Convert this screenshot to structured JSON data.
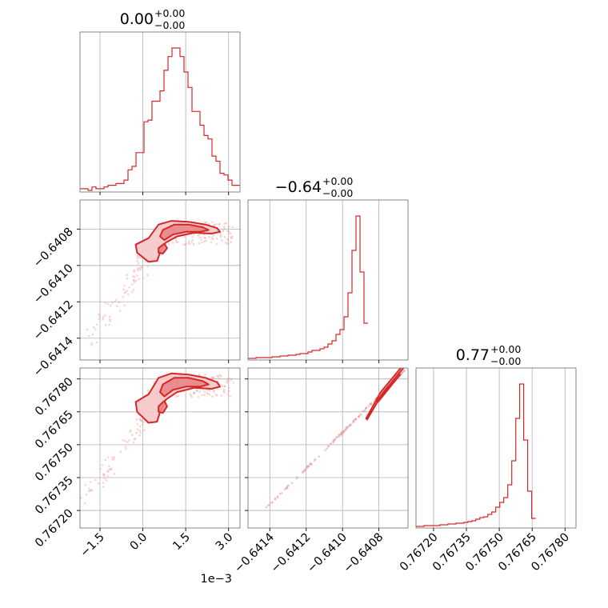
{
  "colors": {
    "series": "#d62728",
    "fill_inner": "#e8878a",
    "fill_outer": "#f5c7c8",
    "scatter": "#eaa0a2",
    "grid": "#b0b0b0",
    "frame": "#000000"
  },
  "chart_data": {
    "type": "corner",
    "grid": true,
    "parameters": [
      {
        "id": "p0",
        "title": "0.00",
        "title_sup": "+0.00",
        "title_sub": "−0.00",
        "range": [
          -2.2,
          3.4
        ],
        "ticks": [
          {
            "value": -1.5,
            "label": "−1.5"
          },
          {
            "value": 0.0,
            "label": "0.0"
          },
          {
            "value": 1.5,
            "label": "1.5"
          },
          {
            "value": 3.0,
            "label": "3.0"
          }
        ],
        "offset": "1e−3",
        "hist": {
          "start": -2.2,
          "bin_width": 0.14,
          "counts": [
            1,
            1,
            0,
            2,
            1,
            1,
            2,
            3,
            3,
            4,
            4,
            6,
            12,
            14,
            22,
            22,
            40,
            41,
            52,
            52,
            58,
            70,
            78,
            83,
            83,
            78,
            69,
            60,
            46,
            46,
            38,
            32,
            30,
            20,
            17,
            10,
            9,
            6,
            3,
            3
          ]
        }
      },
      {
        "id": "p1",
        "title": "−0.64",
        "title_sup": "+0.00",
        "title_sub": "−0.00",
        "range": [
          -0.64152,
          -0.64064
        ],
        "ticks": [
          {
            "value": -0.6414,
            "label": "−0.6414"
          },
          {
            "value": -0.6412,
            "label": "−0.6412"
          },
          {
            "value": -0.641,
            "label": "−0.6410"
          },
          {
            "value": -0.6408,
            "label": "−0.6408"
          }
        ],
        "hist": {
          "start": -0.64152,
          "bin_width": 2.2e-05,
          "counts": [
            0,
            0,
            1,
            1,
            1,
            1,
            2,
            2,
            3,
            3,
            4,
            4,
            5,
            6,
            6,
            8,
            10,
            10,
            12,
            14,
            18,
            22,
            30,
            36,
            52,
            82,
            135,
            178,
            108,
            44
          ]
        }
      },
      {
        "id": "p2",
        "title": "0.77",
        "title_sup": "+0.00",
        "title_sub": "−0.00",
        "range": [
          0.76712,
          0.76785
        ],
        "ticks": [
          {
            "value": 0.7672,
            "label": "0.76720"
          },
          {
            "value": 0.76735,
            "label": "0.76735"
          },
          {
            "value": 0.7675,
            "label": "0.76750"
          },
          {
            "value": 0.76765,
            "label": "0.76765"
          },
          {
            "value": 0.7678,
            "label": "0.76780"
          }
        ],
        "hist": {
          "start": 0.76712,
          "bin_width": 1.82e-05,
          "counts": [
            0,
            0,
            1,
            1,
            1,
            1,
            2,
            2,
            3,
            3,
            4,
            4,
            5,
            6,
            7,
            9,
            11,
            12,
            15,
            18,
            24,
            30,
            36,
            52,
            82,
            135,
            178,
            108,
            44,
            10
          ]
        }
      }
    ],
    "contours": [
      {
        "x": "p0",
        "y": "p1",
        "levels": [
          {
            "type": "outer",
            "points": [
              [
                0.2,
                -0.64085
              ],
              [
                0.55,
                -0.640775
              ],
              [
                1.0,
                -0.640755
              ],
              [
                1.6,
                -0.64076
              ],
              [
                2.2,
                -0.640775
              ],
              [
                2.6,
                -0.640795
              ],
              [
                2.7,
                -0.640815
              ],
              [
                2.4,
                -0.640825
              ],
              [
                1.8,
                -0.64082
              ],
              [
                1.2,
                -0.64084
              ],
              [
                0.8,
                -0.640875
              ],
              [
                0.6,
                -0.64093
              ],
              [
                0.5,
                -0.640975
              ],
              [
                0.2,
                -0.64098
              ],
              [
                -0.2,
                -0.64093
              ],
              [
                -0.25,
                -0.640885
              ]
            ]
          },
          {
            "type": "inner",
            "points": [
              [
                0.7,
                -0.640805
              ],
              [
                1.1,
                -0.640775
              ],
              [
                1.6,
                -0.640775
              ],
              [
                2.1,
                -0.64079
              ],
              [
                2.3,
                -0.640805
              ],
              [
                2.0,
                -0.640815
              ],
              [
                1.5,
                -0.640815
              ],
              [
                1.05,
                -0.64083
              ],
              [
                0.75,
                -0.64086
              ],
              [
                0.6,
                -0.64084
              ]
            ]
          },
          {
            "type": "inner",
            "points": [
              [
                0.55,
                -0.640905
              ],
              [
                0.75,
                -0.64088
              ],
              [
                0.85,
                -0.640905
              ],
              [
                0.7,
                -0.640935
              ],
              [
                0.55,
                -0.64093
              ]
            ]
          }
        ]
      },
      {
        "x": "p0",
        "y": "p2",
        "levels": [
          {
            "type": "outer",
            "points": [
              [
                0.2,
                0.76773
              ],
              [
                0.55,
                0.767805
              ],
              [
                1.0,
                0.767825
              ],
              [
                1.6,
                0.76782
              ],
              [
                2.2,
                0.767805
              ],
              [
                2.6,
                0.767785
              ],
              [
                2.7,
                0.767765
              ],
              [
                2.4,
                0.767755
              ],
              [
                1.8,
                0.76776
              ],
              [
                1.2,
                0.76774
              ],
              [
                0.8,
                0.767705
              ],
              [
                0.6,
                0.76765
              ],
              [
                0.5,
                0.767605
              ],
              [
                0.2,
                0.7676
              ],
              [
                -0.2,
                0.76765
              ],
              [
                -0.25,
                0.767695
              ]
            ]
          },
          {
            "type": "inner",
            "points": [
              [
                0.7,
                0.767775
              ],
              [
                1.1,
                0.767805
              ],
              [
                1.6,
                0.767805
              ],
              [
                2.1,
                0.76779
              ],
              [
                2.3,
                0.767775
              ],
              [
                2.0,
                0.767765
              ],
              [
                1.5,
                0.767765
              ],
              [
                1.05,
                0.76775
              ],
              [
                0.75,
                0.76772
              ],
              [
                0.6,
                0.76774
              ]
            ]
          },
          {
            "type": "inner",
            "points": [
              [
                0.55,
                0.767675
              ],
              [
                0.75,
                0.7677
              ],
              [
                0.85,
                0.767675
              ],
              [
                0.7,
                0.767645
              ],
              [
                0.55,
                0.76765
              ]
            ]
          }
        ]
      },
      {
        "x": "p1",
        "y": "p2",
        "levels": [
          {
            "type": "outer",
            "points": [
              [
                -0.64087,
                0.76762
              ],
              [
                -0.64079,
                0.76774
              ],
              [
                -0.64067,
                0.76786
              ],
              [
                -0.64066,
                0.767855
              ],
              [
                -0.64078,
                0.767735
              ],
              [
                -0.640865,
                0.767615
              ]
            ]
          },
          {
            "type": "inner",
            "points": [
              [
                -0.64081,
                0.7677
              ],
              [
                -0.64072,
                0.767795
              ],
              [
                -0.64069,
                0.767825
              ],
              [
                -0.640685,
                0.767818
              ],
              [
                -0.640715,
                0.767788
              ],
              [
                -0.640805,
                0.767695
              ]
            ]
          }
        ]
      }
    ]
  }
}
